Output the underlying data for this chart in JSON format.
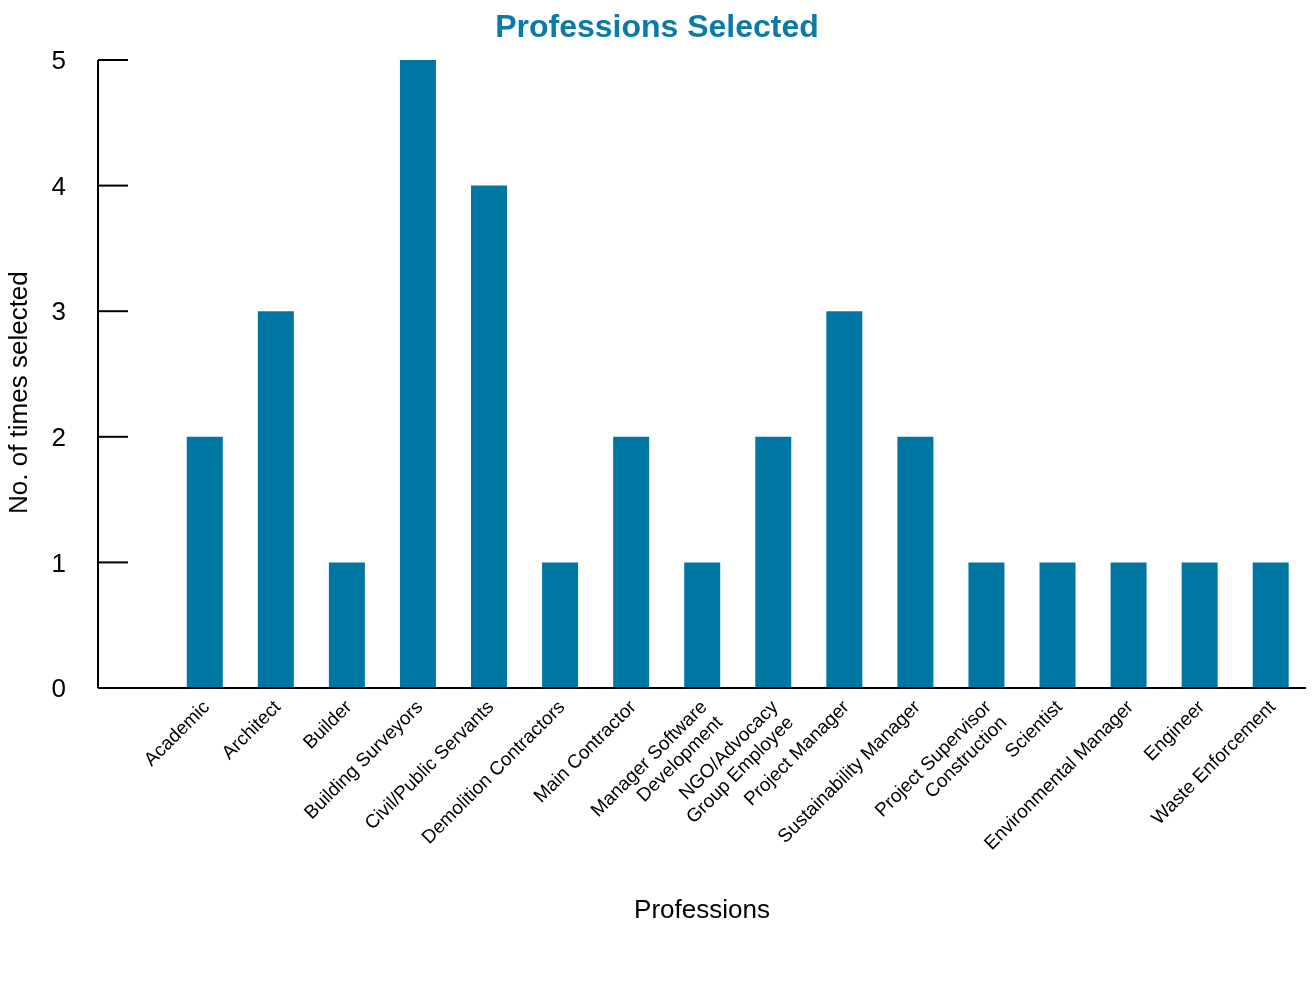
{
  "chart_data": {
    "type": "bar",
    "title": "Professions Selected",
    "xlabel": "Professions",
    "ylabel": "No. of times selected",
    "categories": [
      "Academic",
      "Architect",
      "Builder",
      "Building Surveyors",
      "Civil/Public Servants",
      "Demolition Contractors",
      "Main Contractor",
      "Manager Software\nDevelopment",
      "NGO/Advocacy\nGroup Employee",
      "Project Manager",
      "Sustainability Manager",
      "Project Supervisor\nConstruction",
      "Scientist",
      "Environmental Manager",
      "Engineer",
      "Waste Enforcement"
    ],
    "values": [
      2,
      3,
      1,
      5,
      4,
      1,
      2,
      1,
      2,
      3,
      2,
      1,
      1,
      1,
      1,
      1
    ],
    "color": "#0077a3",
    "ylim": [
      0,
      5
    ],
    "yticks": [
      0,
      1,
      2,
      3,
      4,
      5
    ],
    "grid": false,
    "legend": false
  }
}
